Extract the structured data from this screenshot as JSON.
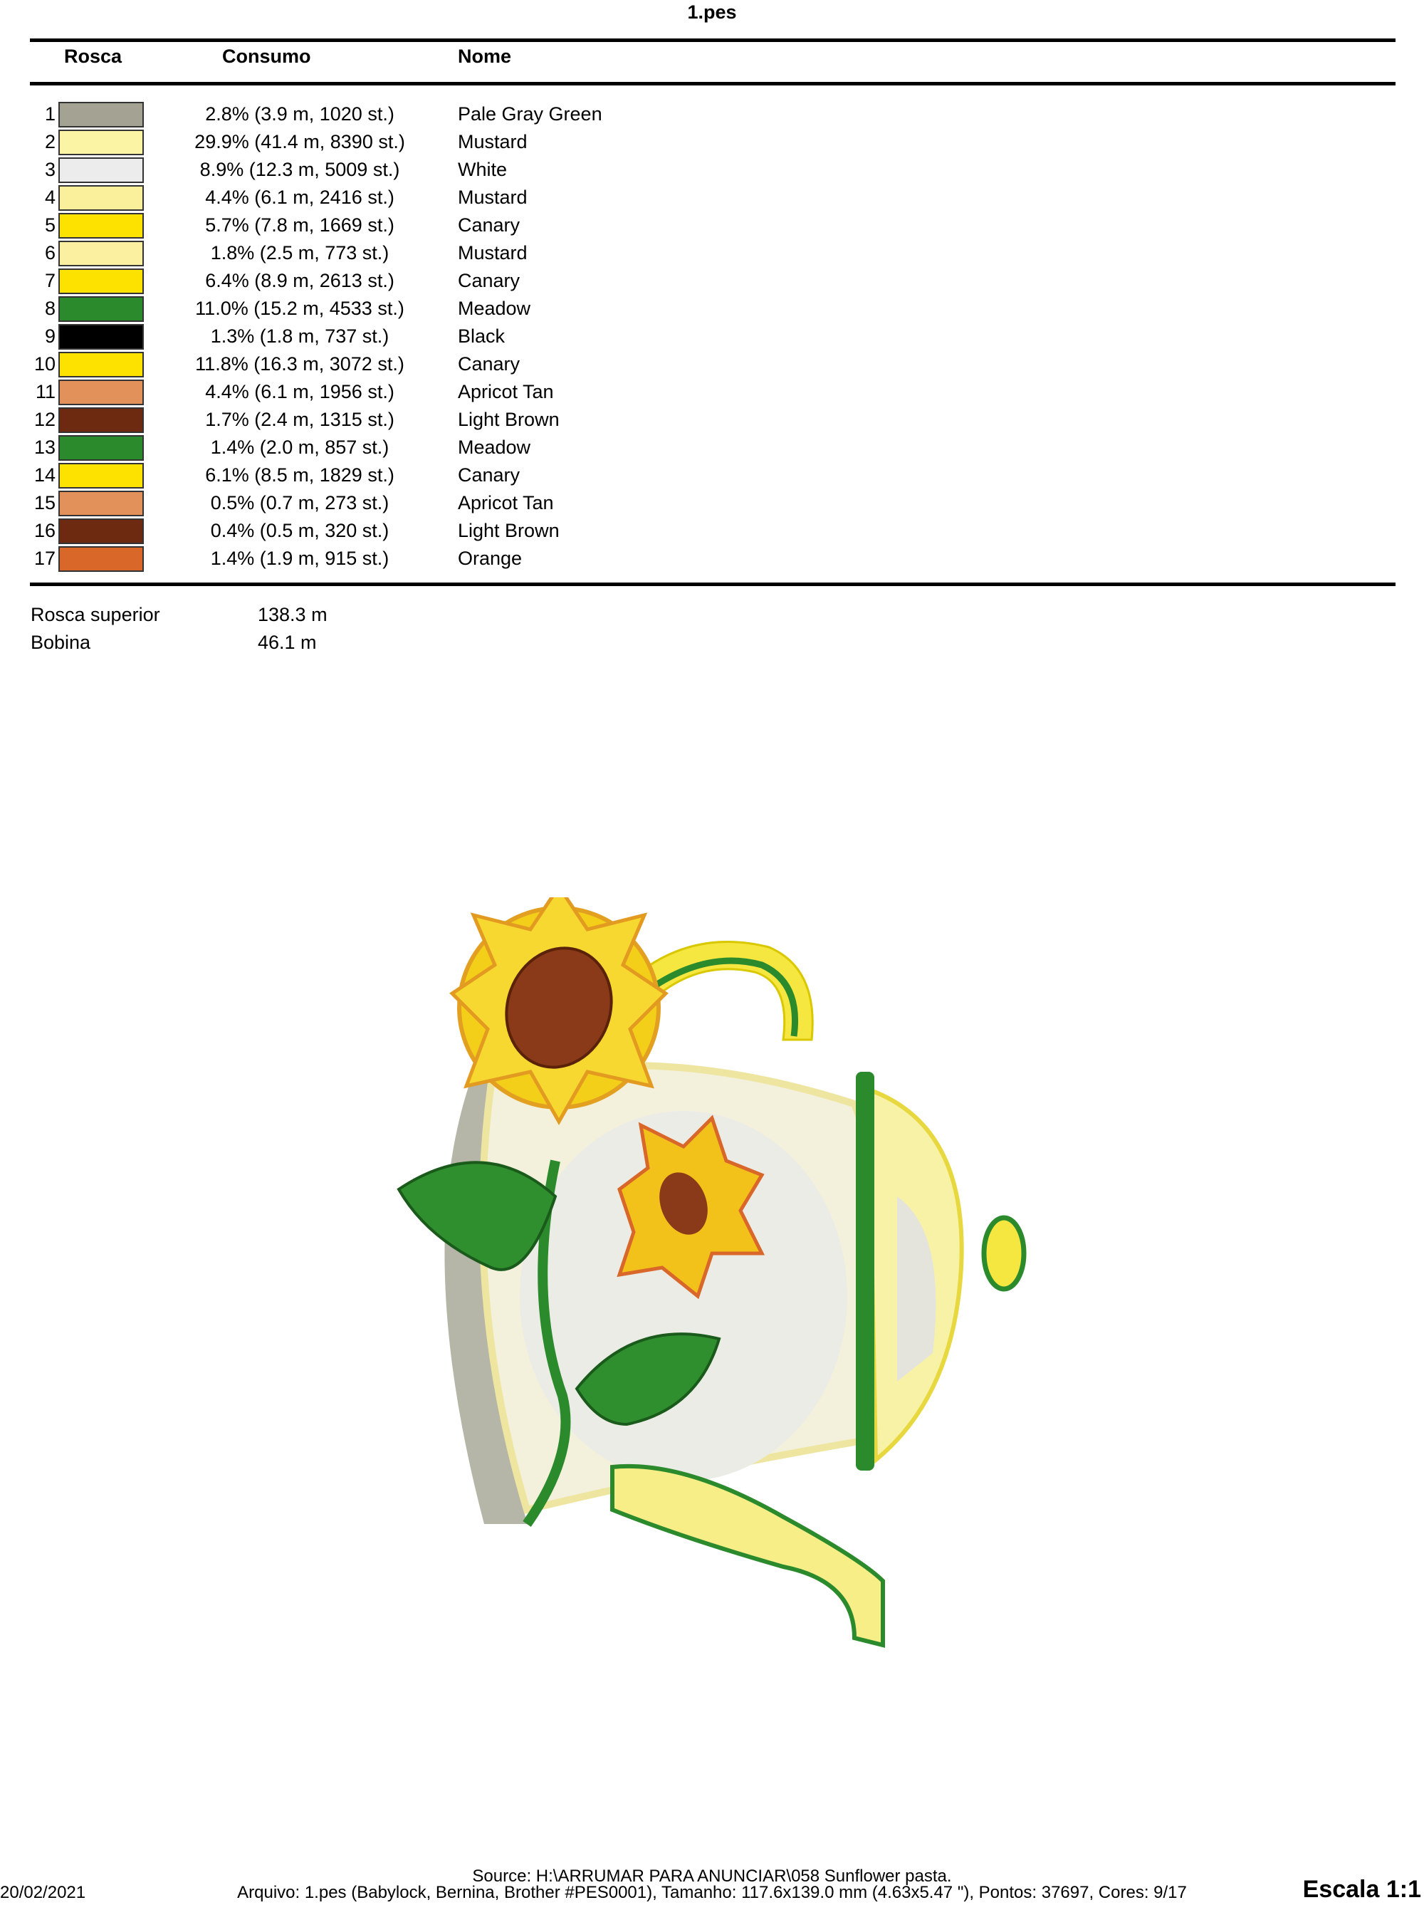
{
  "title": "1.pes",
  "headers": {
    "rosca": "Rosca",
    "consumo": "Consumo",
    "nome": "Nome"
  },
  "threads": [
    {
      "num": "1",
      "color": "#a4a393",
      "consumo": "2.8% (3.9 m, 1020 st.)",
      "nome": "Pale Gray Green"
    },
    {
      "num": "2",
      "color": "#fbf4a4",
      "consumo": "29.9% (41.4 m, 8390 st.)",
      "nome": "Mustard"
    },
    {
      "num": "3",
      "color": "#ececec",
      "consumo": "8.9% (12.3 m, 5009 st.)",
      "nome": "White"
    },
    {
      "num": "4",
      "color": "#faf09c",
      "consumo": "4.4% (6.1 m, 2416 st.)",
      "nome": "Mustard"
    },
    {
      "num": "5",
      "color": "#fde200",
      "consumo": "5.7% (7.8 m, 1669 st.)",
      "nome": "Canary"
    },
    {
      "num": "6",
      "color": "#faf0a0",
      "consumo": "1.8% (2.5 m, 773 st.)",
      "nome": "Mustard"
    },
    {
      "num": "7",
      "color": "#fde200",
      "consumo": "6.4% (8.9 m, 2613 st.)",
      "nome": "Canary"
    },
    {
      "num": "8",
      "color": "#2b8a2b",
      "consumo": "11.0% (15.2 m, 4533 st.)",
      "nome": "Meadow"
    },
    {
      "num": "9",
      "color": "#000000",
      "consumo": "1.3% (1.8 m, 737 st.)",
      "nome": "Black"
    },
    {
      "num": "10",
      "color": "#fde200",
      "consumo": "11.8% (16.3 m, 3072 st.)",
      "nome": "Canary"
    },
    {
      "num": "11",
      "color": "#e3915a",
      "consumo": "4.4% (6.1 m, 1956 st.)",
      "nome": "Apricot Tan"
    },
    {
      "num": "12",
      "color": "#6e2a10",
      "consumo": "1.7% (2.4 m, 1315 st.)",
      "nome": "Light Brown"
    },
    {
      "num": "13",
      "color": "#2b8a2b",
      "consumo": "1.4% (2.0 m, 857 st.)",
      "nome": "Meadow"
    },
    {
      "num": "14",
      "color": "#fde200",
      "consumo": "6.1% (8.5 m, 1829 st.)",
      "nome": "Canary"
    },
    {
      "num": "15",
      "color": "#e3915a",
      "consumo": "0.5% (0.7 m, 273 st.)",
      "nome": "Apricot Tan"
    },
    {
      "num": "16",
      "color": "#6e2a10",
      "consumo": "0.4% (0.5 m, 320 st.)",
      "nome": "Light Brown"
    },
    {
      "num": "17",
      "color": "#d9672a",
      "consumo": "1.4% (1.9 m, 915 st.)",
      "nome": "Orange"
    }
  ],
  "totals": {
    "top_label": "Rosca superior",
    "top_value": "138.3 m",
    "bobbin_label": "Bobina",
    "bobbin_value": "46.1 m"
  },
  "footer": {
    "date": "20/02/2021",
    "source": "Source: H:\\ARRUMAR PARA ANUNCIAR\\058 Sunflower pasta.",
    "file_info": "Arquivo: 1.pes (Babylock, Bernina, Brother #PES0001), Tamanho: 117.6x139.0 mm (4.63x5.47 \"), Pontos: 37697, Cores: 9/17",
    "scale": "Escala 1:1"
  }
}
